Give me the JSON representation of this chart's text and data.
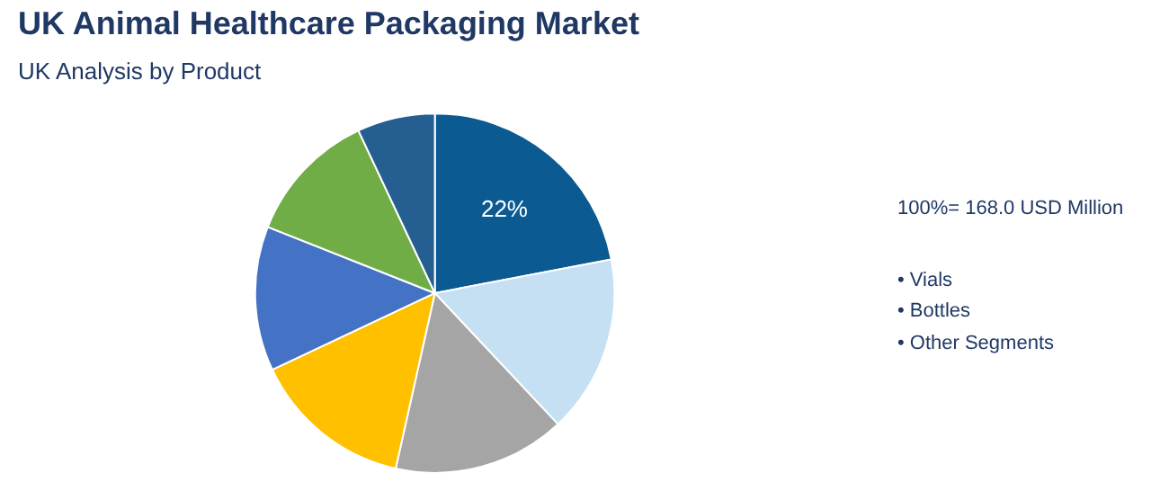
{
  "chart_data": {
    "type": "pie",
    "title": "UK Animal Healthcare Packaging Market",
    "subtitle": "UK Analysis by Product",
    "categories": [
      null,
      null,
      null,
      null,
      null,
      null,
      null
    ],
    "values": [
      22,
      16,
      15.5,
      14.5,
      13,
      12,
      7
    ],
    "colors": [
      "#0b5a91",
      "#c5e0f3",
      "#a5a5a5",
      "#ffc000",
      "#4472c4",
      "#70ad47",
      "#255e91"
    ],
    "value_labels": [
      "22%",
      null,
      null,
      null,
      null,
      null,
      null
    ],
    "annotations": [
      "100%= 168.0 USD Million",
      "• Vials",
      "• Bottles",
      "• Other Segments"
    ],
    "legend": false
  }
}
